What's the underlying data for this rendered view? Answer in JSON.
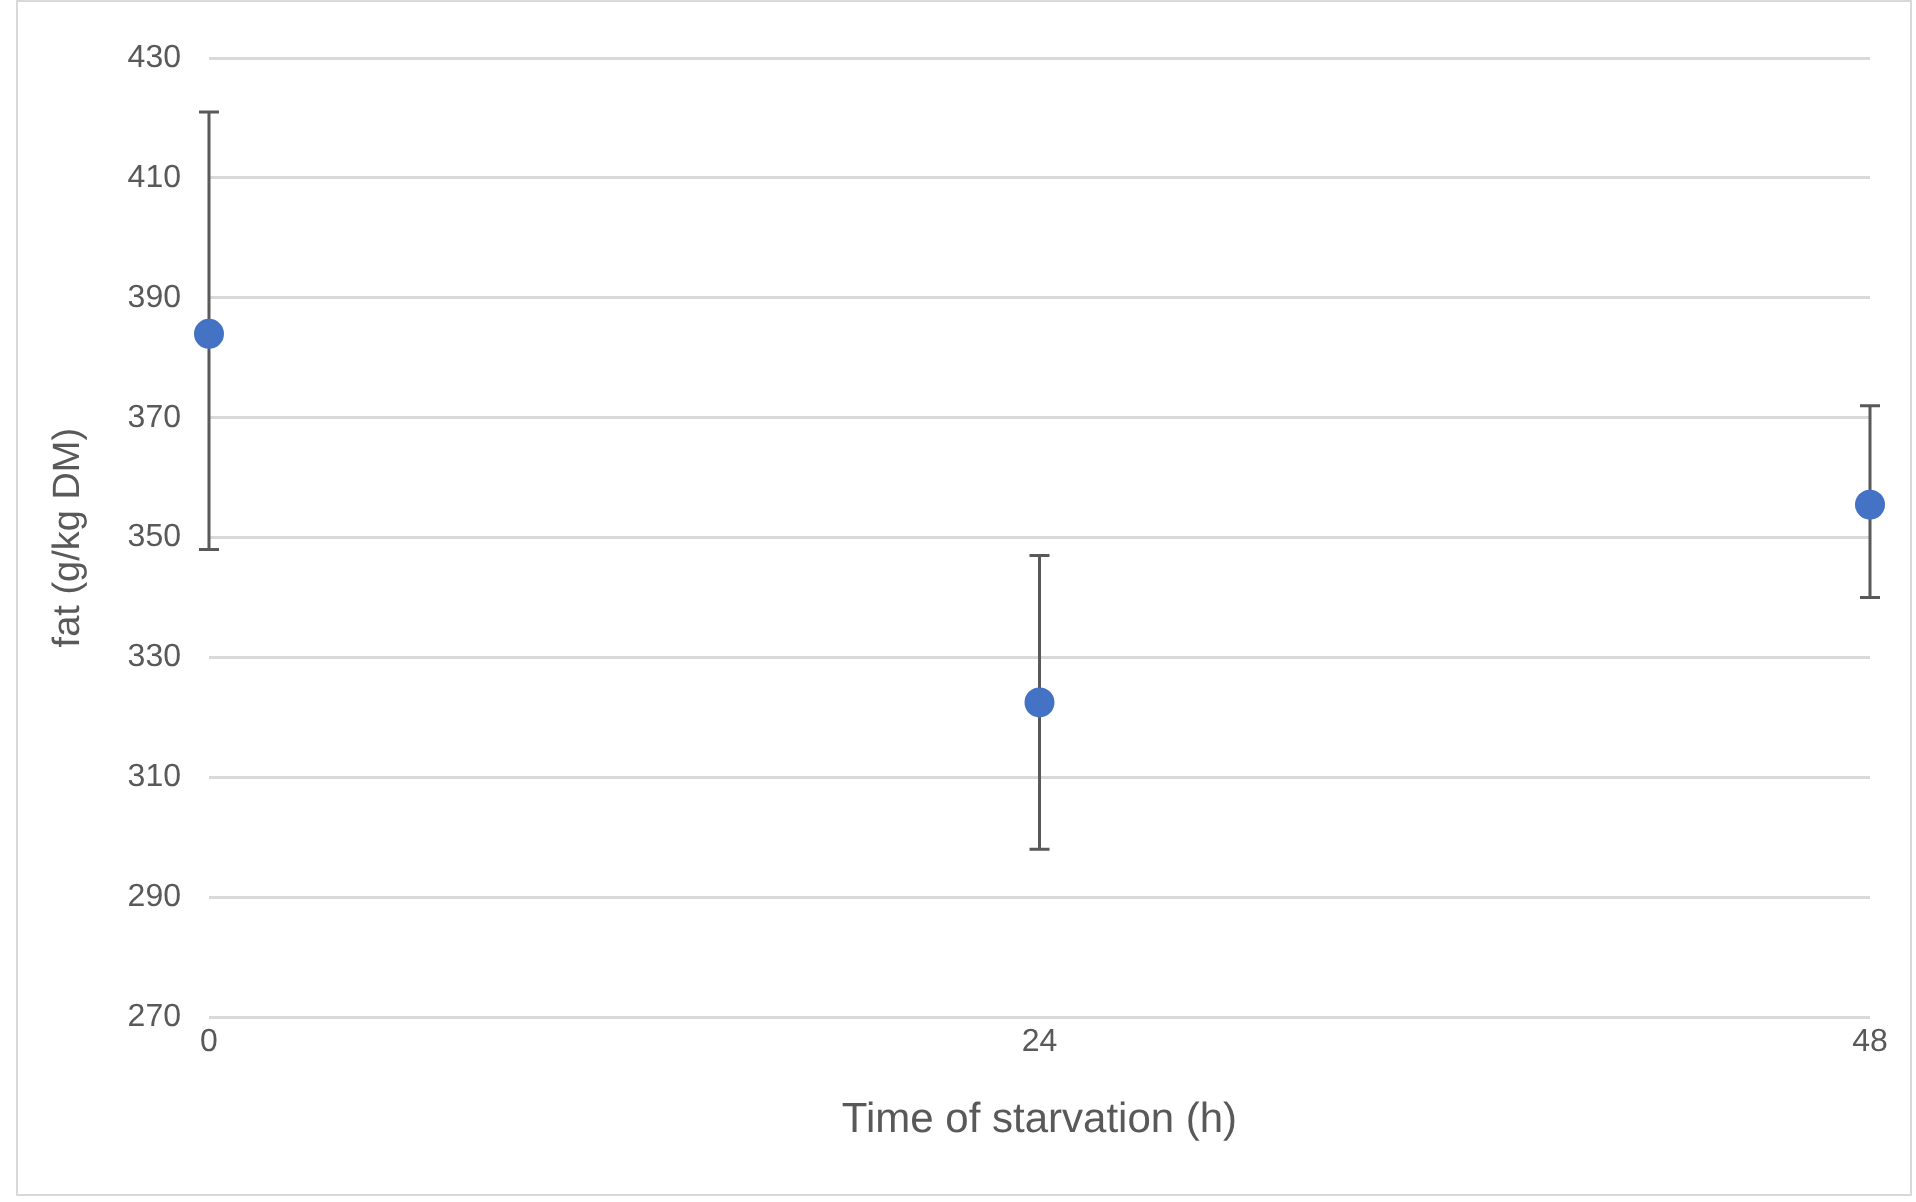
{
  "chart_data": {
    "type": "scatter",
    "xlabel": "Time of starvation (h)",
    "ylabel": "fat (g/kg DM)",
    "x": [
      0,
      24,
      48
    ],
    "series": [
      {
        "color": "#4472c4",
        "values": [
          384,
          322.5,
          355.5
        ],
        "errors": [
          [
            348,
            421
          ],
          [
            298,
            347
          ],
          [
            340,
            372
          ]
        ]
      }
    ],
    "xlim": [
      0,
      48
    ],
    "xticks": [
      0,
      24,
      48
    ],
    "ylim": [
      270,
      430
    ],
    "yticks": [
      270,
      290,
      310,
      330,
      350,
      370,
      390,
      410,
      430
    ],
    "grid": "y",
    "legend": false,
    "marker": "circle"
  }
}
